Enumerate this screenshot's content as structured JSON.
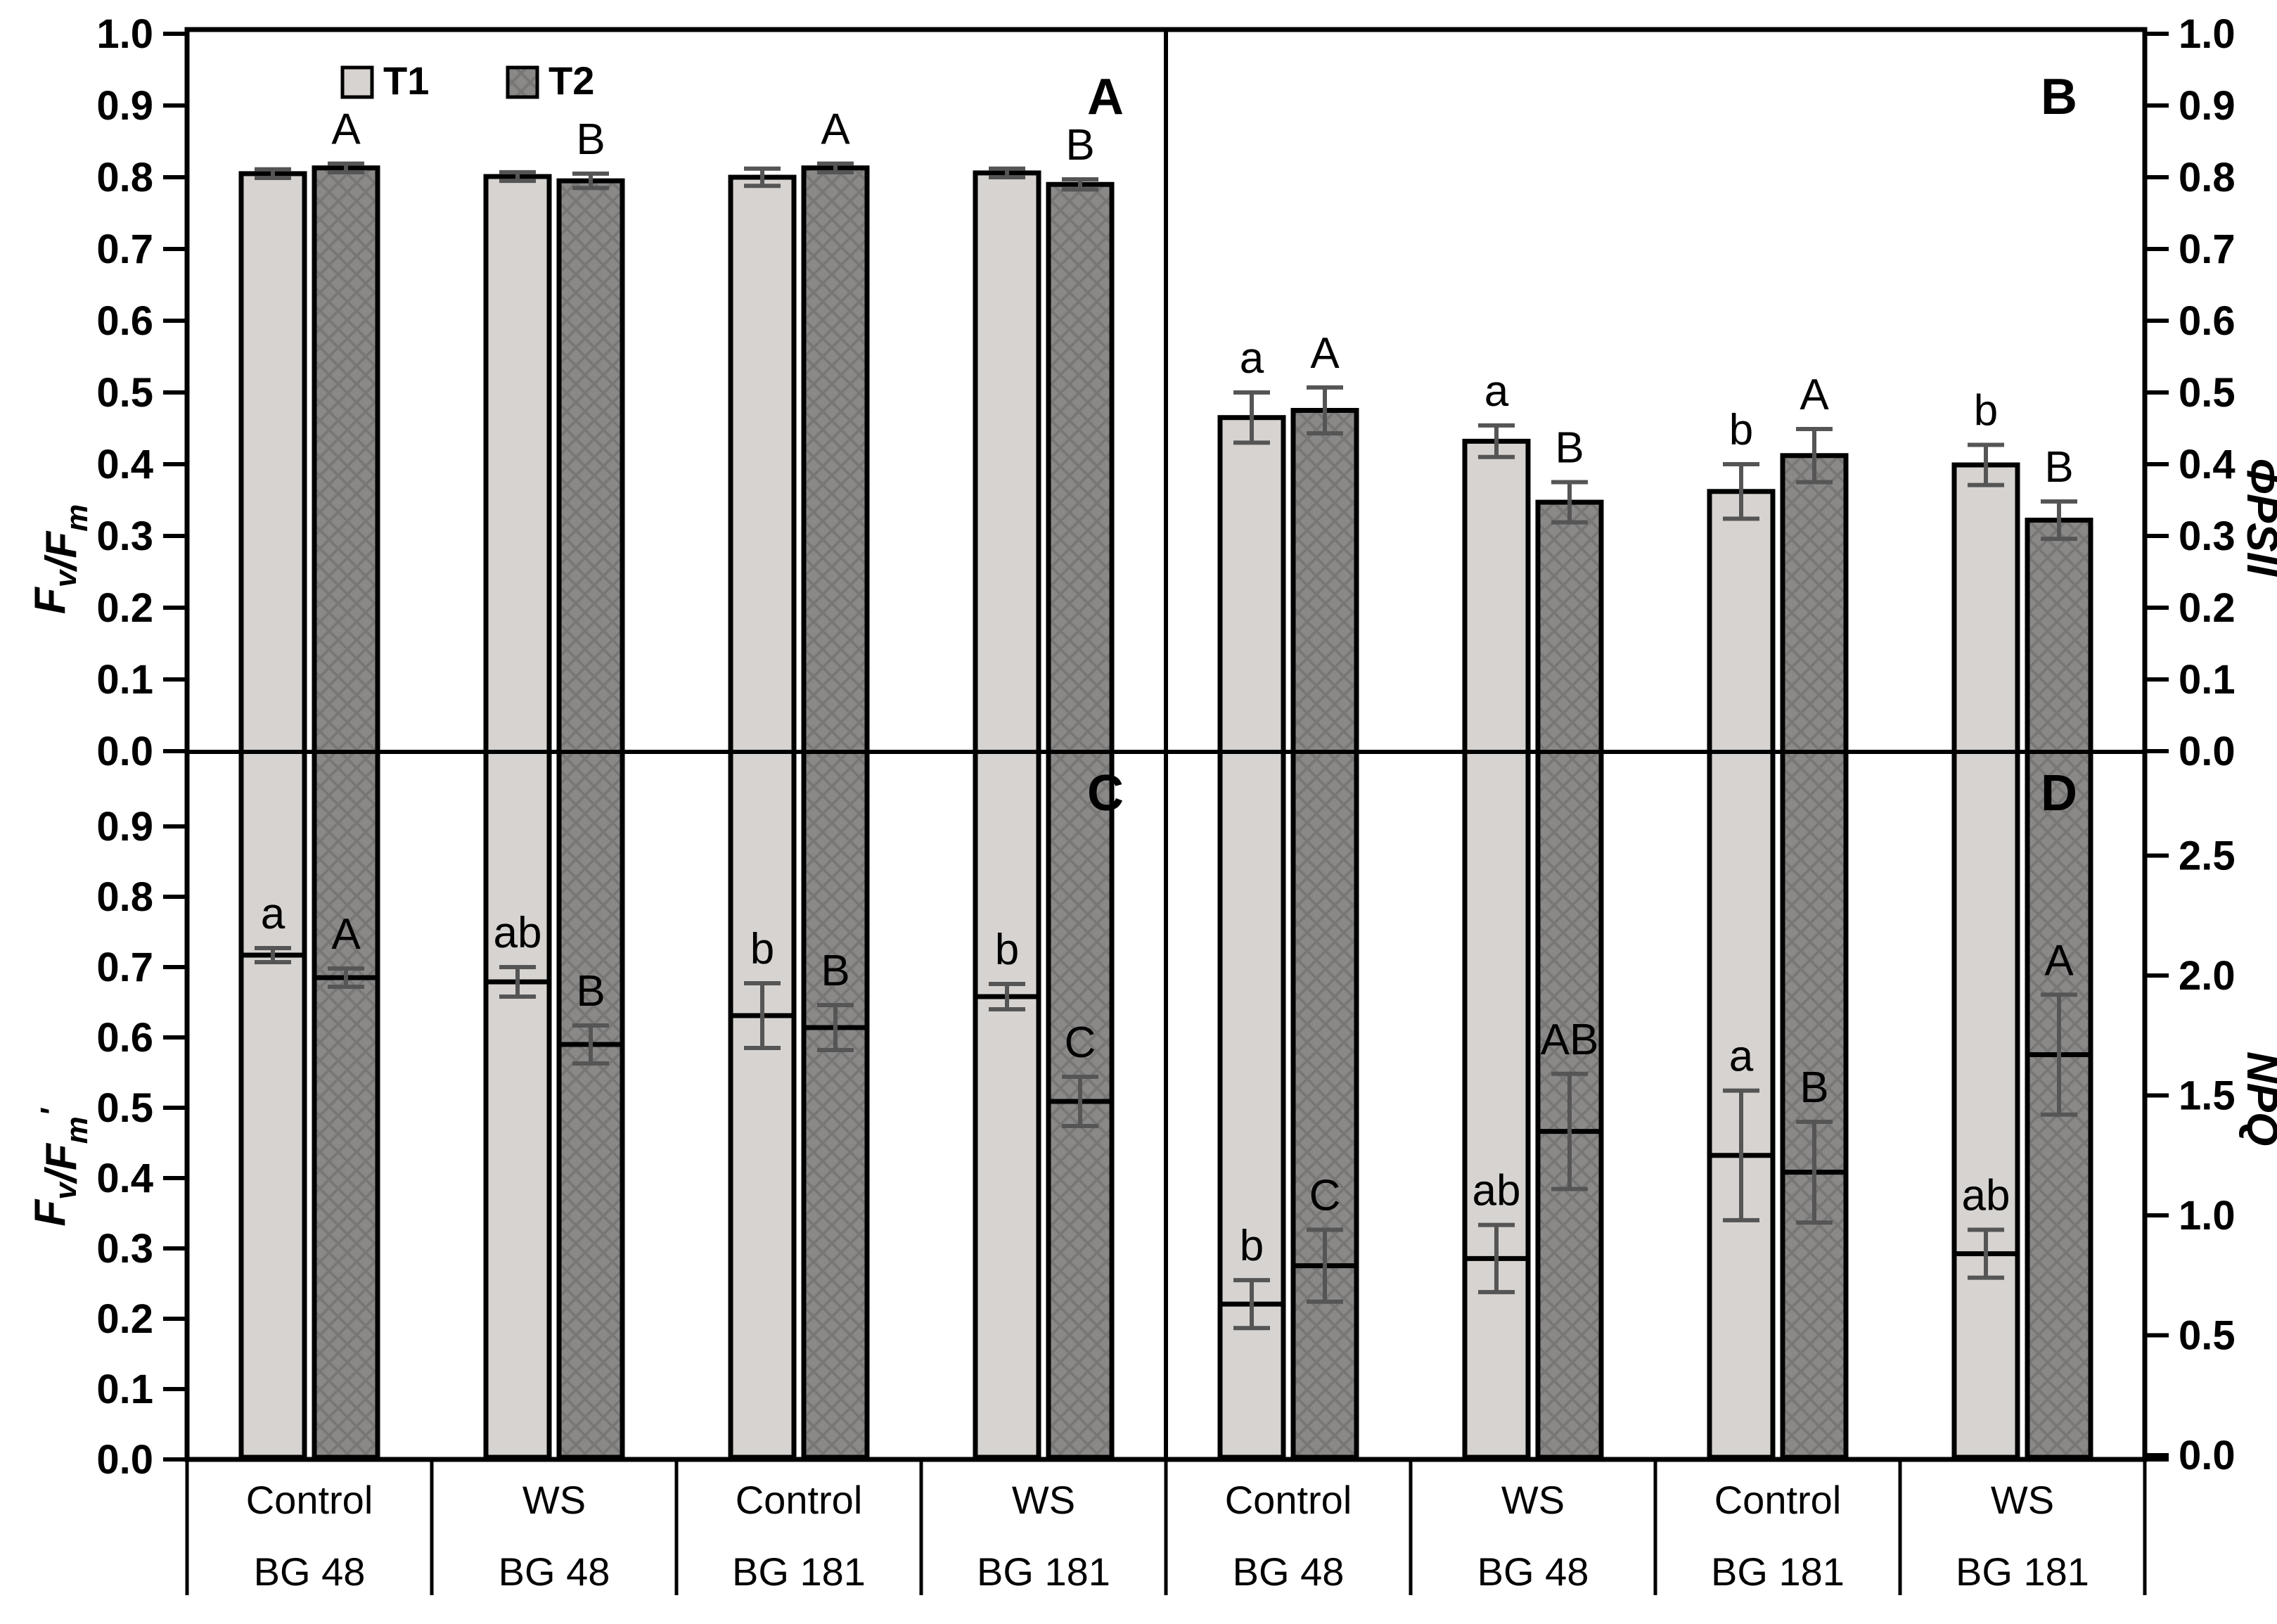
{
  "figure": {
    "background": "#ffffff",
    "legend": {
      "items": [
        {
          "label": "T1",
          "fill": "#d6d3d0"
        },
        {
          "label": "T2",
          "fill": "#8b8988"
        }
      ]
    },
    "colors": {
      "t1_fill": "#d6d3d0",
      "t2_fill": "#8b8988",
      "bar_border": "#000000",
      "error_bar": "#555555",
      "axis": "#000000",
      "text": "#000000"
    }
  },
  "chart_data": {
    "type": "bar",
    "series_names": [
      "T1",
      "T2"
    ],
    "categories": [
      {
        "treatment": "Control",
        "genotype": "BG 48"
      },
      {
        "treatment": "WS",
        "genotype": "BG 48"
      },
      {
        "treatment": "Control",
        "genotype": "BG 181"
      },
      {
        "treatment": "WS",
        "genotype": "BG 181"
      }
    ],
    "panels": [
      {
        "id": "A",
        "label": "A",
        "ylabel_parts": [
          {
            "t": "F",
            "style": "it"
          },
          {
            "t": "v",
            "style": "sub"
          },
          {
            "t": "/F",
            "style": "it"
          },
          {
            "t": "m",
            "style": "sub"
          }
        ],
        "axis_side": "left",
        "ylim": [
          0.0,
          1.0
        ],
        "yticks": [
          {
            "label": "1.0",
            "value": 1.0
          },
          {
            "label": "0.9",
            "value": 0.9
          },
          {
            "label": "0.8",
            "value": 0.8
          },
          {
            "label": "0.7",
            "value": 0.7
          },
          {
            "label": "0.6",
            "value": 0.6
          },
          {
            "label": "0.5",
            "value": 0.5
          },
          {
            "label": "0.4",
            "value": 0.4
          },
          {
            "label": "0.3",
            "value": 0.3
          },
          {
            "label": "0.2",
            "value": 0.2
          },
          {
            "label": "0.1",
            "value": 0.1
          },
          {
            "label": "0.0",
            "value": 0.0
          }
        ],
        "grid": false,
        "groups": [
          {
            "bars": [
              {
                "series": "T1",
                "value": 0.805,
                "err": 0.006,
                "letter": ""
              },
              {
                "series": "T2",
                "value": 0.813,
                "err": 0.006,
                "letter": "A"
              }
            ]
          },
          {
            "bars": [
              {
                "series": "T1",
                "value": 0.801,
                "err": 0.006,
                "letter": ""
              },
              {
                "series": "T2",
                "value": 0.795,
                "err": 0.01,
                "letter": "B"
              }
            ]
          },
          {
            "bars": [
              {
                "series": "T1",
                "value": 0.8,
                "err": 0.012,
                "letter": ""
              },
              {
                "series": "T2",
                "value": 0.813,
                "err": 0.006,
                "letter": "A"
              }
            ]
          },
          {
            "bars": [
              {
                "series": "T1",
                "value": 0.806,
                "err": 0.006,
                "letter": ""
              },
              {
                "series": "T2",
                "value": 0.79,
                "err": 0.007,
                "letter": "B"
              }
            ]
          }
        ]
      },
      {
        "id": "B",
        "label": "B",
        "ylabel_parts": [
          {
            "t": "ΦPSII",
            "style": "it"
          }
        ],
        "axis_side": "right",
        "ylim": [
          0.0,
          1.0
        ],
        "yticks": [
          {
            "label": "1.0",
            "value": 1.0
          },
          {
            "label": "0.9",
            "value": 0.9
          },
          {
            "label": "0.8",
            "value": 0.8
          },
          {
            "label": "0.7",
            "value": 0.7
          },
          {
            "label": "0.6",
            "value": 0.6
          },
          {
            "label": "0.5",
            "value": 0.5
          },
          {
            "label": "0.4",
            "value": 0.4
          },
          {
            "label": "0.3",
            "value": 0.3
          },
          {
            "label": "0.2",
            "value": 0.2
          },
          {
            "label": "0.1",
            "value": 0.1
          },
          {
            "label": "0.0",
            "value": 0.0
          }
        ],
        "grid": false,
        "groups": [
          {
            "bars": [
              {
                "series": "T1",
                "value": 0.465,
                "err": 0.035,
                "letter": "a"
              },
              {
                "series": "T2",
                "value": 0.475,
                "err": 0.032,
                "letter": "A"
              }
            ]
          },
          {
            "bars": [
              {
                "series": "T1",
                "value": 0.432,
                "err": 0.022,
                "letter": "a"
              },
              {
                "series": "T2",
                "value": 0.347,
                "err": 0.028,
                "letter": "B"
              }
            ]
          },
          {
            "bars": [
              {
                "series": "T1",
                "value": 0.362,
                "err": 0.038,
                "letter": "b"
              },
              {
                "series": "T2",
                "value": 0.412,
                "err": 0.037,
                "letter": "A"
              }
            ]
          },
          {
            "bars": [
              {
                "series": "T1",
                "value": 0.399,
                "err": 0.028,
                "letter": "b"
              },
              {
                "series": "T2",
                "value": 0.322,
                "err": 0.026,
                "letter": "B"
              }
            ]
          }
        ]
      },
      {
        "id": "C",
        "label": "C",
        "ylabel_parts": [
          {
            "t": "F",
            "style": "it"
          },
          {
            "t": "v",
            "style": "sub"
          },
          {
            "t": "/F",
            "style": "it"
          },
          {
            "t": "m",
            "style": "sub"
          },
          {
            "t": "'",
            "style": "prime"
          }
        ],
        "axis_side": "left",
        "ylim": [
          0.0,
          1.0
        ],
        "yticks": [
          {
            "label": "0.9",
            "value": 0.9
          },
          {
            "label": "0.8",
            "value": 0.8
          },
          {
            "label": "0.7",
            "value": 0.7
          },
          {
            "label": "0.6",
            "value": 0.6
          },
          {
            "label": "0.5",
            "value": 0.5
          },
          {
            "label": "0.4",
            "value": 0.4
          },
          {
            "label": "0.3",
            "value": 0.3
          },
          {
            "label": "0.2",
            "value": 0.2
          },
          {
            "label": "0.1",
            "value": 0.1
          },
          {
            "label": "0.0",
            "value": 0.0
          }
        ],
        "grid": false,
        "groups": [
          {
            "bars": [
              {
                "series": "T1",
                "value": 0.717,
                "err": 0.01,
                "letter": "a"
              },
              {
                "series": "T2",
                "value": 0.685,
                "err": 0.013,
                "letter": "A"
              }
            ]
          },
          {
            "bars": [
              {
                "series": "T1",
                "value": 0.679,
                "err": 0.021,
                "letter": "ab"
              },
              {
                "series": "T2",
                "value": 0.59,
                "err": 0.027,
                "letter": "B"
              }
            ]
          },
          {
            "bars": [
              {
                "series": "T1",
                "value": 0.631,
                "err": 0.046,
                "letter": "b"
              },
              {
                "series": "T2",
                "value": 0.614,
                "err": 0.032,
                "letter": "B"
              }
            ]
          },
          {
            "bars": [
              {
                "series": "T1",
                "value": 0.658,
                "err": 0.018,
                "letter": "b"
              },
              {
                "series": "T2",
                "value": 0.509,
                "err": 0.035,
                "letter": "C"
              }
            ]
          }
        ]
      },
      {
        "id": "D",
        "label": "D",
        "ylabel_parts": [
          {
            "t": "NPQ",
            "style": "it"
          }
        ],
        "axis_side": "right",
        "ylim": [
          0.0,
          2.95
        ],
        "yticks": [
          {
            "label": "2.5",
            "value": 2.5
          },
          {
            "label": "2.0",
            "value": 2.0
          },
          {
            "label": "1.5",
            "value": 1.5
          },
          {
            "label": "1.0",
            "value": 1.0
          },
          {
            "label": "0.5",
            "value": 0.5
          },
          {
            "label": "0.0",
            "value": 0.0
          }
        ],
        "grid": false,
        "groups": [
          {
            "bars": [
              {
                "series": "T1",
                "value": 0.63,
                "err": 0.1,
                "letter": "b"
              },
              {
                "series": "T2",
                "value": 0.79,
                "err": 0.15,
                "letter": "C"
              }
            ]
          },
          {
            "bars": [
              {
                "series": "T1",
                "value": 0.82,
                "err": 0.14,
                "letter": "ab"
              },
              {
                "series": "T2",
                "value": 1.35,
                "err": 0.24,
                "letter": "AB"
              }
            ]
          },
          {
            "bars": [
              {
                "series": "T1",
                "value": 1.25,
                "err": 0.27,
                "letter": "a"
              },
              {
                "series": "T2",
                "value": 1.18,
                "err": 0.21,
                "letter": "B"
              }
            ]
          },
          {
            "bars": [
              {
                "series": "T1",
                "value": 0.84,
                "err": 0.1,
                "letter": "ab"
              },
              {
                "series": "T2",
                "value": 1.67,
                "err": 0.25,
                "letter": "A"
              }
            ]
          }
        ]
      }
    ]
  }
}
